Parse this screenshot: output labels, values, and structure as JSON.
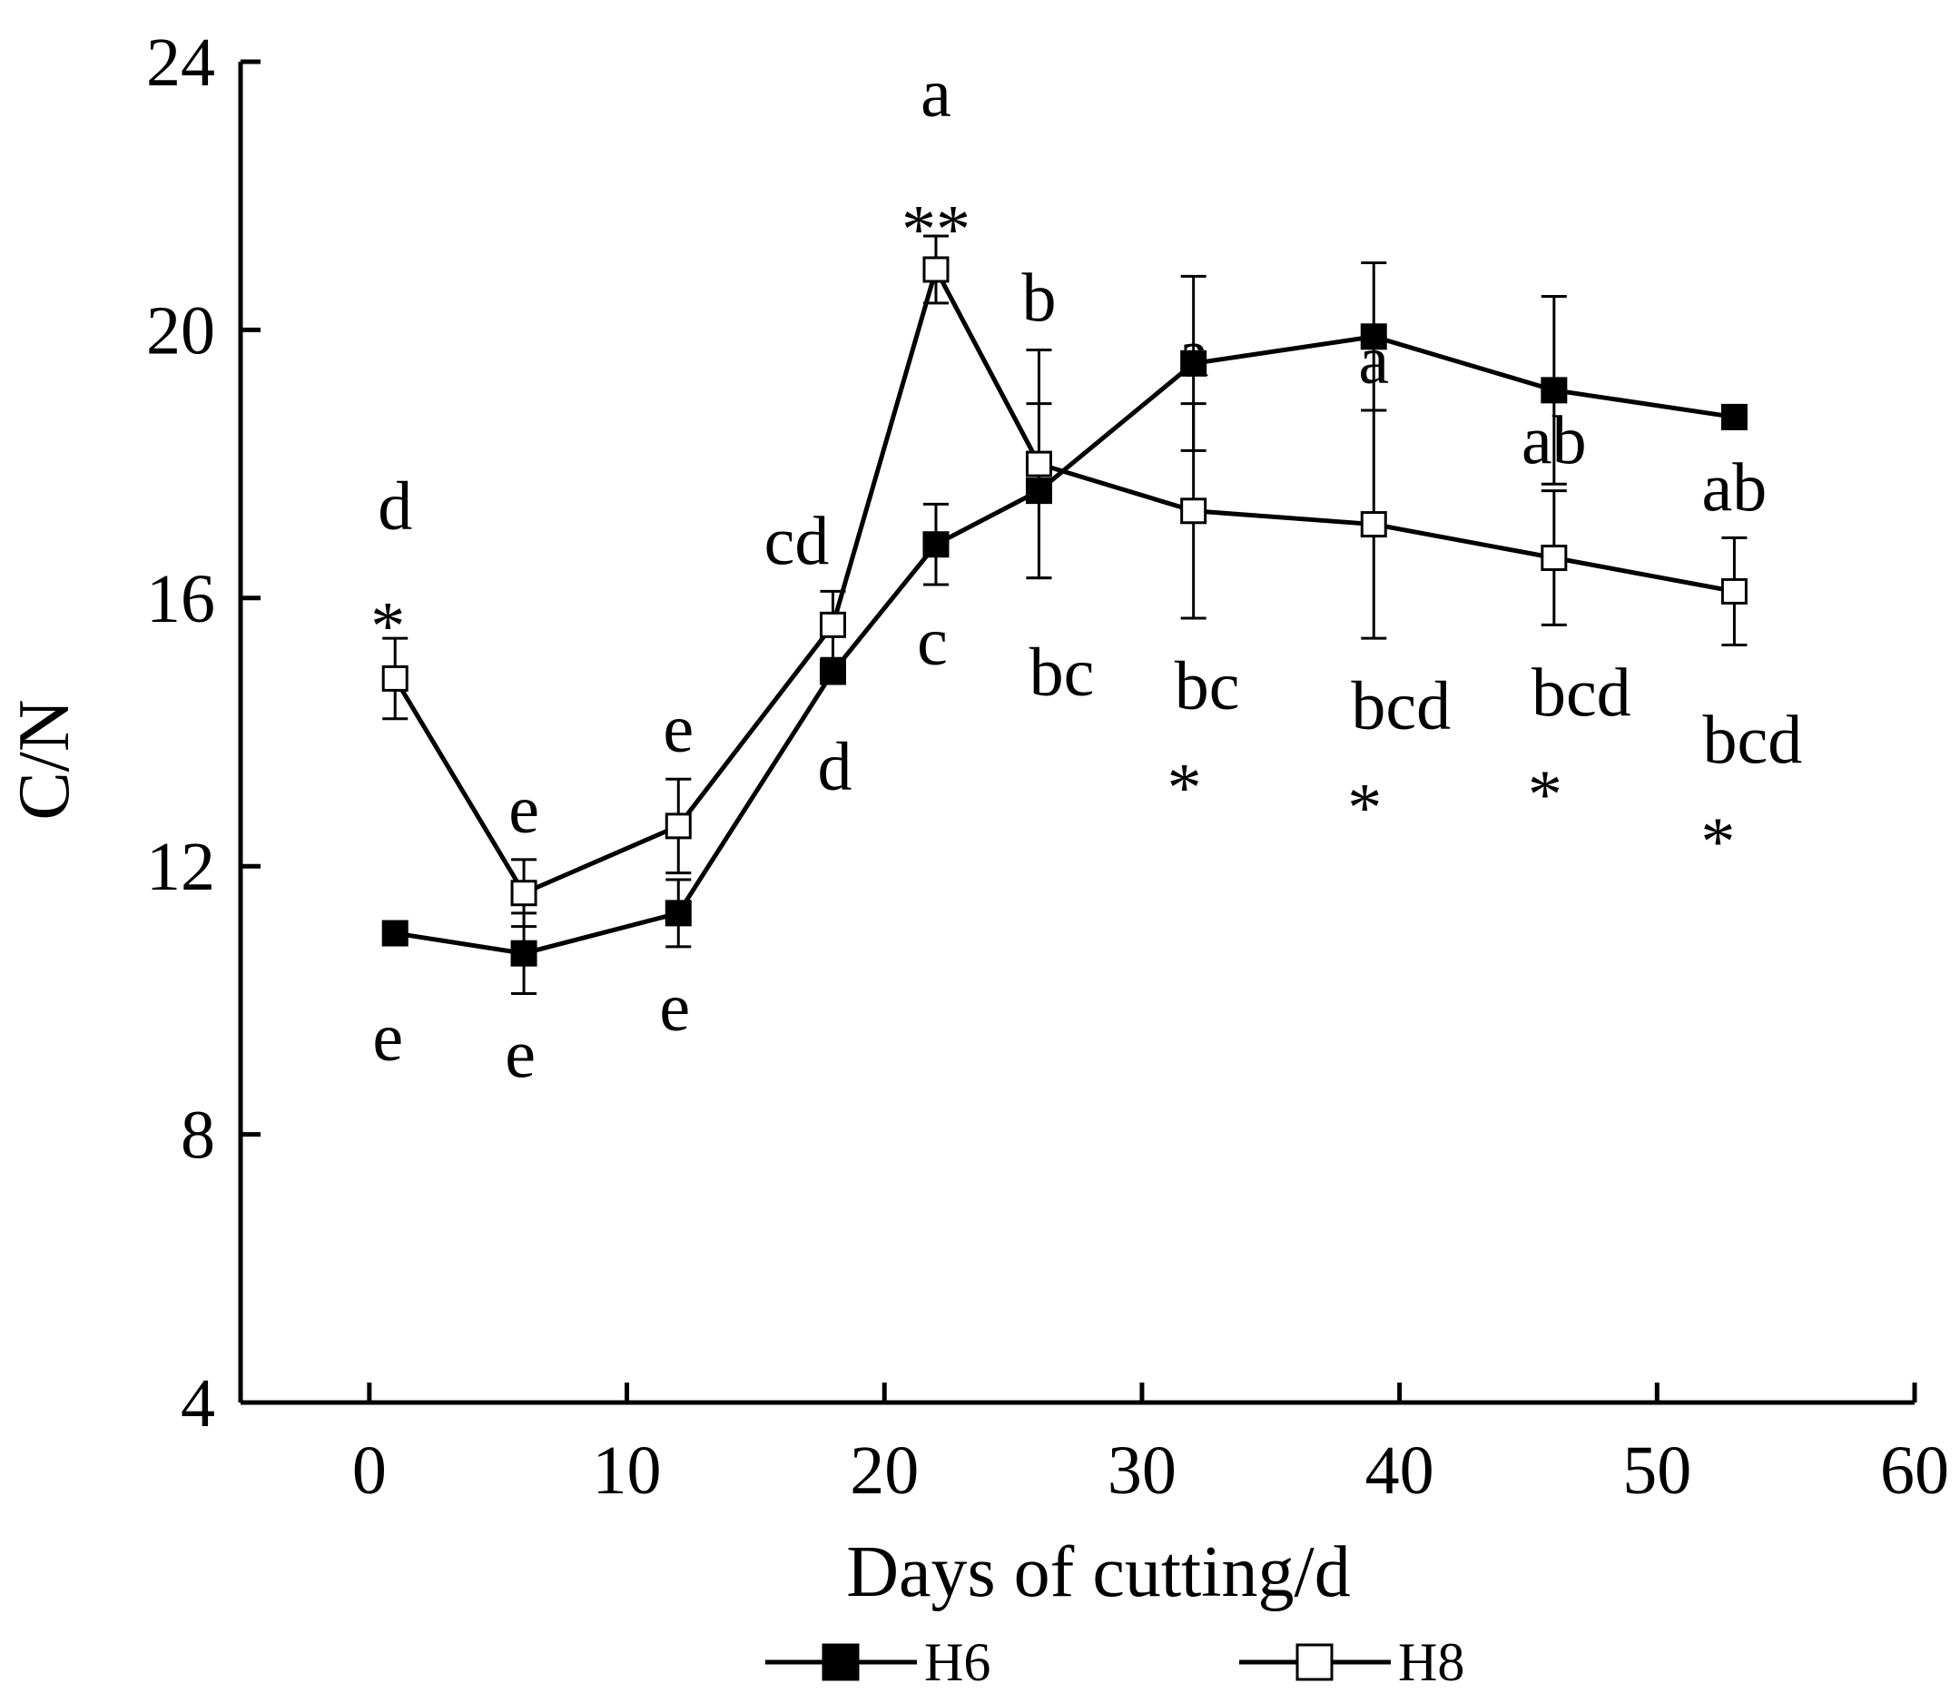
{
  "chart_data": {
    "type": "line",
    "title": "",
    "xlabel": "Days of cutting/d",
    "ylabel": "C/N",
    "xlim": [
      -5,
      60
    ],
    "ylim": [
      4,
      24
    ],
    "xticks": [
      0,
      10,
      20,
      30,
      40,
      50,
      60
    ],
    "yticks": [
      4,
      8,
      12,
      16,
      20,
      24
    ],
    "xtick_labels": [
      "0",
      "10",
      "20",
      "30",
      "40",
      "50",
      "60"
    ],
    "ytick_labels": [
      "4",
      "8",
      "12",
      "16",
      "20",
      "24"
    ],
    "legend_position": "bottom",
    "grid": false,
    "series": [
      {
        "name": "H6",
        "marker": "filled-square",
        "x": [
          1,
          6,
          12,
          18,
          22,
          26,
          32,
          39,
          46,
          53
        ],
        "y": [
          11.0,
          10.7,
          11.3,
          14.9,
          16.8,
          17.6,
          19.5,
          19.9,
          19.1,
          18.7
        ],
        "error": [
          0.1,
          0.6,
          0.5,
          0.1,
          0.6,
          1.3,
          1.3,
          1.1,
          1.4,
          0.1
        ],
        "letters": [
          "e",
          "e",
          "e",
          "d",
          "c",
          "bc",
          "bc",
          "bcd",
          "bcd",
          "bcd"
        ],
        "letter_placement": "below"
      },
      {
        "name": "H8",
        "marker": "open-square",
        "x": [
          1,
          6,
          12,
          18,
          22,
          26,
          32,
          39,
          46,
          53
        ],
        "y": [
          14.8,
          11.6,
          12.6,
          15.6,
          20.9,
          18.0,
          17.3,
          17.1,
          16.6,
          16.1
        ],
        "error": [
          0.6,
          0.5,
          0.7,
          0.5,
          0.5,
          1.7,
          1.6,
          1.7,
          1.0,
          0.8
        ],
        "letters": [
          "d",
          "e",
          "e",
          "cd",
          "a",
          "b",
          "a",
          "a",
          "ab",
          "ab"
        ],
        "letter_placement": "above"
      }
    ],
    "significance": [
      {
        "x": 1,
        "marks": "*",
        "placement": "above"
      },
      {
        "x": 22,
        "marks": "**",
        "placement": "above"
      },
      {
        "x": 32,
        "marks": "*",
        "placement": "below"
      },
      {
        "x": 39,
        "marks": "*",
        "placement": "below"
      },
      {
        "x": 46,
        "marks": "*",
        "placement": "below"
      },
      {
        "x": 53,
        "marks": "*",
        "placement": "below"
      }
    ]
  }
}
